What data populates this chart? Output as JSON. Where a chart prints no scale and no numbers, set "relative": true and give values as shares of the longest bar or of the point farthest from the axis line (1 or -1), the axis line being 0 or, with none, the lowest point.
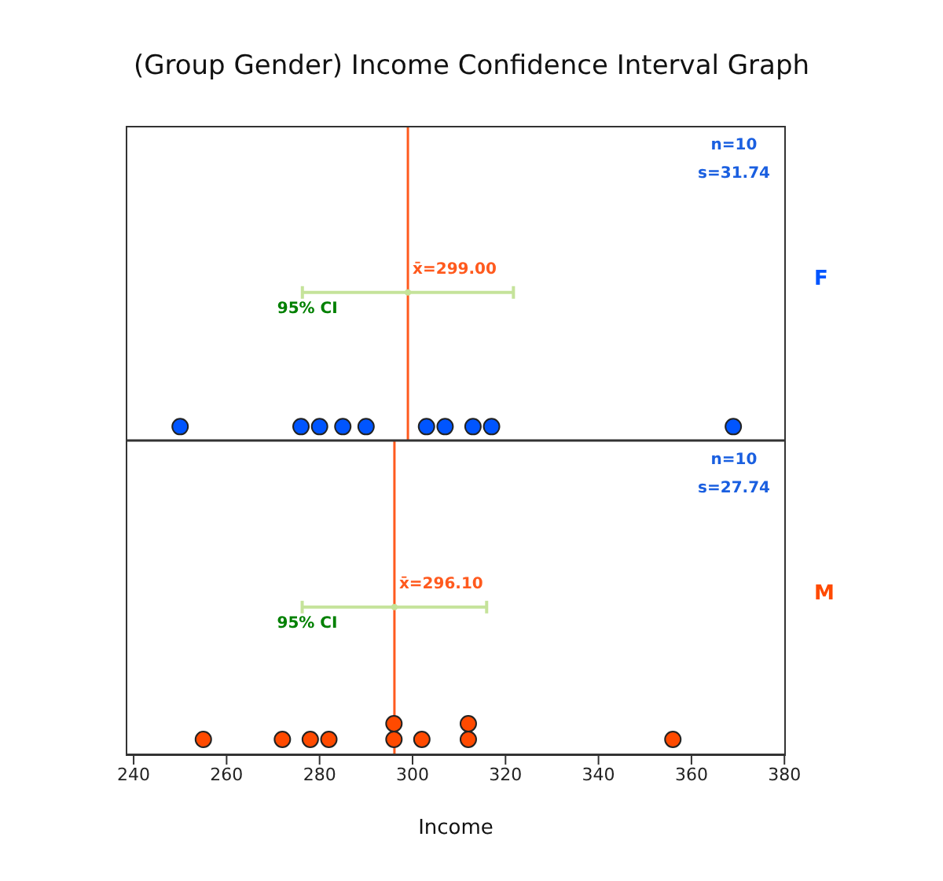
{
  "chart_data": {
    "type": "scatter",
    "title": "(Group Gender) Income Confidence Interval Graph",
    "xlabel": "Income",
    "relative": true,
    "marker": "circle",
    "xlim": [
      238.3,
      380.3
    ],
    "xticks": [
      240,
      260,
      280,
      300,
      320,
      340,
      360,
      380
    ],
    "series": [
      {
        "name": "F",
        "color": "#0055ff",
        "x": [
          250,
          276,
          280,
          285,
          290,
          303,
          307,
          313,
          317,
          369
        ],
        "values": [
          0.71,
          0.71,
          0.71,
          0.71,
          0.71,
          0.71,
          0.71,
          0.71,
          0.71,
          0.71
        ]
      },
      {
        "name": "M",
        "color": "#ff4a00",
        "x": [
          255,
          272,
          278,
          282,
          296,
          296,
          302,
          312,
          312,
          356
        ],
        "values": [
          0.034,
          0.034,
          0.034,
          0.034,
          0.034,
          0.068,
          0.034,
          0.034,
          0.068,
          0.034
        ]
      },
      {
        "color": "#c5e39a",
        "x": [
          299.0
        ],
        "values": [
          1
        ],
        "xerrors": [
          [
            276.3,
            321.7
          ]
        ]
      },
      {
        "color": "#c5e39a",
        "x": [
          296.1
        ],
        "values": [
          0.32
        ],
        "xerrors": [
          [
            276.26,
            315.94
          ]
        ]
      }
    ],
    "ref_lines": [
      {
        "axis": "x",
        "value": 299.0,
        "label": "x̄=299.00",
        "color": "#ff5a1e"
      },
      {
        "axis": "x",
        "value": 296.1,
        "label": "x̄=296.10",
        "color": "#ff5a1e"
      },
      {
        "axis": "y",
        "value": 0.68,
        "color": "#333333"
      }
    ],
    "annotations": [
      "n=10",
      "s=31.74",
      "n=10",
      "s=27.74",
      {
        "text": "95% CI",
        "x": 276.3,
        "y": 1
      },
      {
        "text": "95% CI",
        "x": 276.26,
        "y": 0.32
      }
    ]
  }
}
